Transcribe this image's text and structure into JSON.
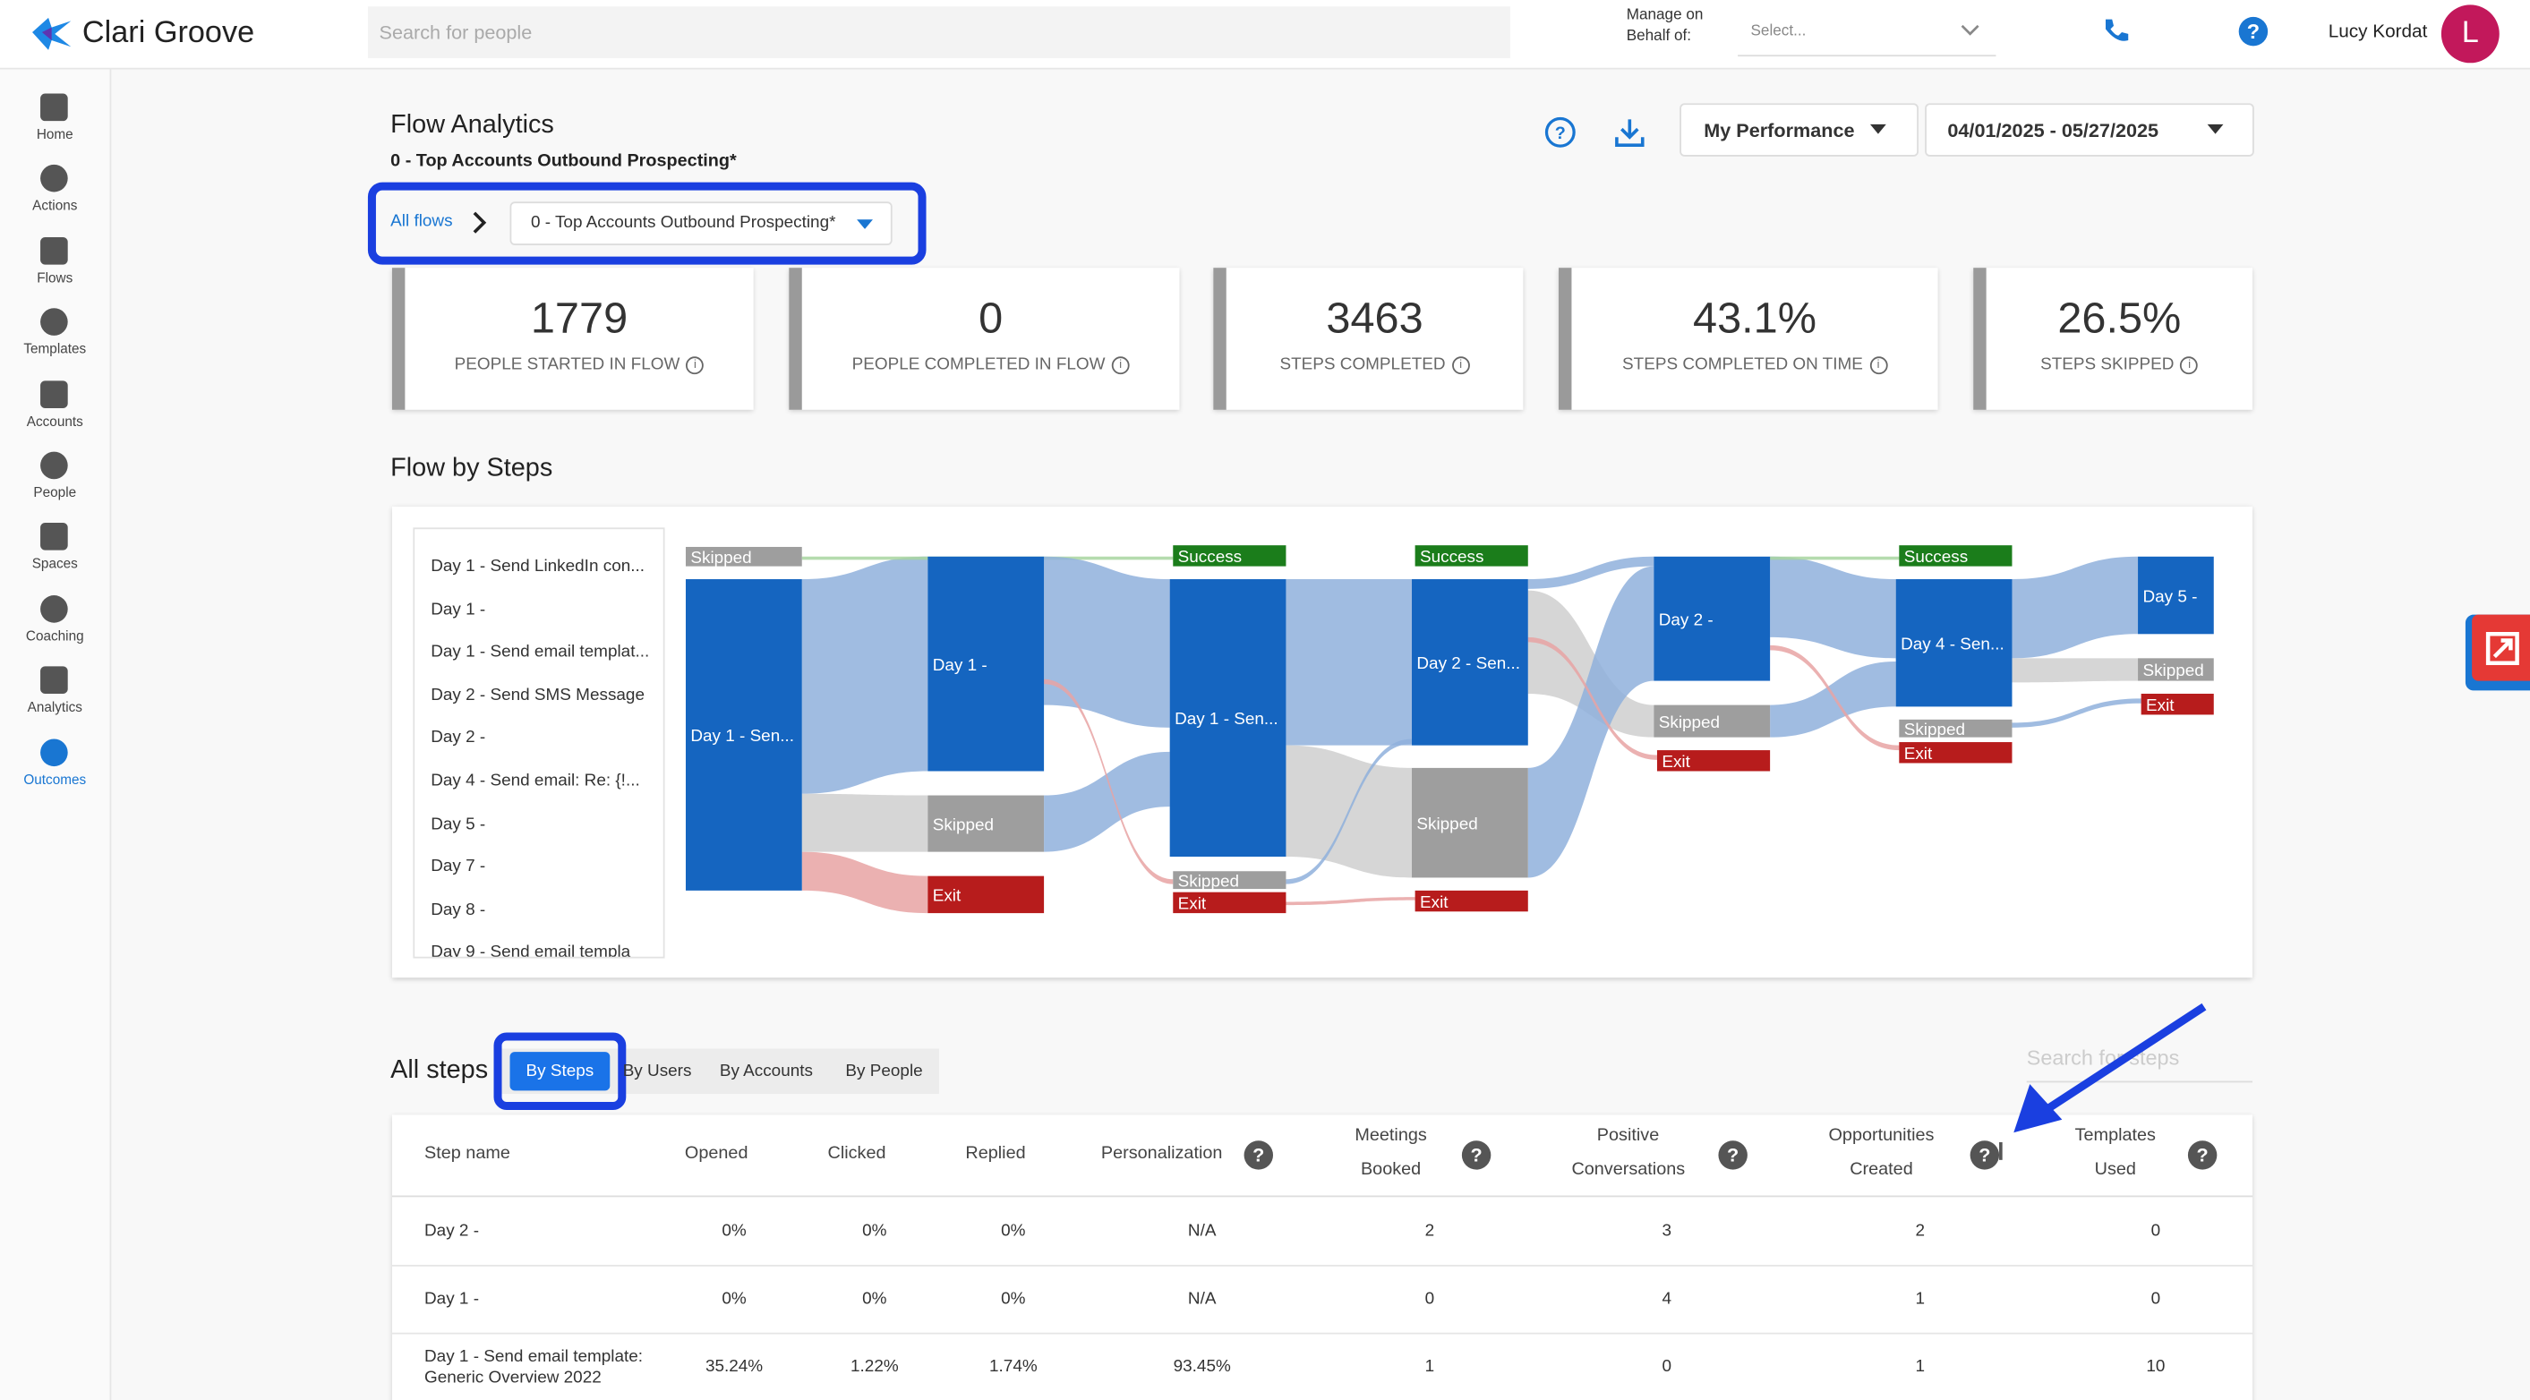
{
  "header": {
    "logo": "Clari Groove",
    "search_placeholder": "Search for people",
    "manage_label": "Manage on Behalf of:",
    "select_placeholder": "Select...",
    "user_name": "Lucy Kordat",
    "avatar": "L"
  },
  "sidebar": [
    "Home",
    "Actions",
    "Flows",
    "Templates",
    "Accounts",
    "People",
    "Spaces",
    "Coaching",
    "Analytics",
    "Outcomes"
  ],
  "page": {
    "title": "Flow Analytics",
    "subtitle": "0 - Top Accounts Outbound Prospecting*",
    "performance": "My Performance",
    "date_range": "04/01/2025 - 05/27/2025",
    "breadcrumb_link": "All flows",
    "flow_select": "0 - Top Accounts Outbound Prospecting*"
  },
  "kpis": [
    {
      "value": "1779",
      "label": "PEOPLE STARTED IN FLOW"
    },
    {
      "value": "0",
      "label": "PEOPLE COMPLETED IN FLOW"
    },
    {
      "value": "3463",
      "label": "STEPS COMPLETED"
    },
    {
      "value": "43.1%",
      "label": "STEPS COMPLETED ON TIME"
    },
    {
      "value": "26.5%",
      "label": "STEPS SKIPPED"
    }
  ],
  "flow_by_steps": {
    "title": "Flow by Steps",
    "steps": [
      "Day 1 - Send LinkedIn con...",
      "Day 1 -",
      "Day 1 - Send email templat...",
      "Day 2 - Send SMS Message",
      "Day 2 -",
      "Day 4 - Send email: Re: {!...",
      "Day 5 -",
      "Day 7 -",
      "Day 8 -",
      "Day 9 - Send email templa"
    ],
    "nodes": [
      "Skipped",
      "Day 1 - Sen...",
      "Day 1 -",
      "Skipped",
      "Exit",
      "Success",
      "Day 1 - Sen...",
      "Skipped",
      "Exit",
      "Success",
      "Day 2 - Sen...",
      "Skipped",
      "Exit",
      "Day 2 -",
      "Skipped",
      "Exit",
      "Success",
      "Day 4 - Sen...",
      "Skipped",
      "Exit",
      "Day 5 -",
      "Skipped",
      "Exit"
    ]
  },
  "all_steps": {
    "title": "All steps",
    "tabs": [
      "By Steps",
      "By Users",
      "By Accounts",
      "By People"
    ],
    "search_placeholder": "Search for steps",
    "columns": [
      "Step name",
      "Opened",
      "Clicked",
      "Replied",
      "Personalization",
      "Meetings Booked",
      "Positive Conversations",
      "Opportunities Created",
      "Templates Used"
    ],
    "rows": [
      [
        "Day 2 -",
        "0%",
        "0%",
        "0%",
        "N/A",
        "2",
        "3",
        "2",
        "0"
      ],
      [
        "Day 1 -",
        "0%",
        "0%",
        "0%",
        "N/A",
        "0",
        "4",
        "1",
        "0"
      ],
      [
        "Day 1 - Send email template: Generic Overview 2022",
        "35.24%",
        "1.22%",
        "1.74%",
        "93.45%",
        "1",
        "0",
        "1",
        "10"
      ]
    ]
  }
}
